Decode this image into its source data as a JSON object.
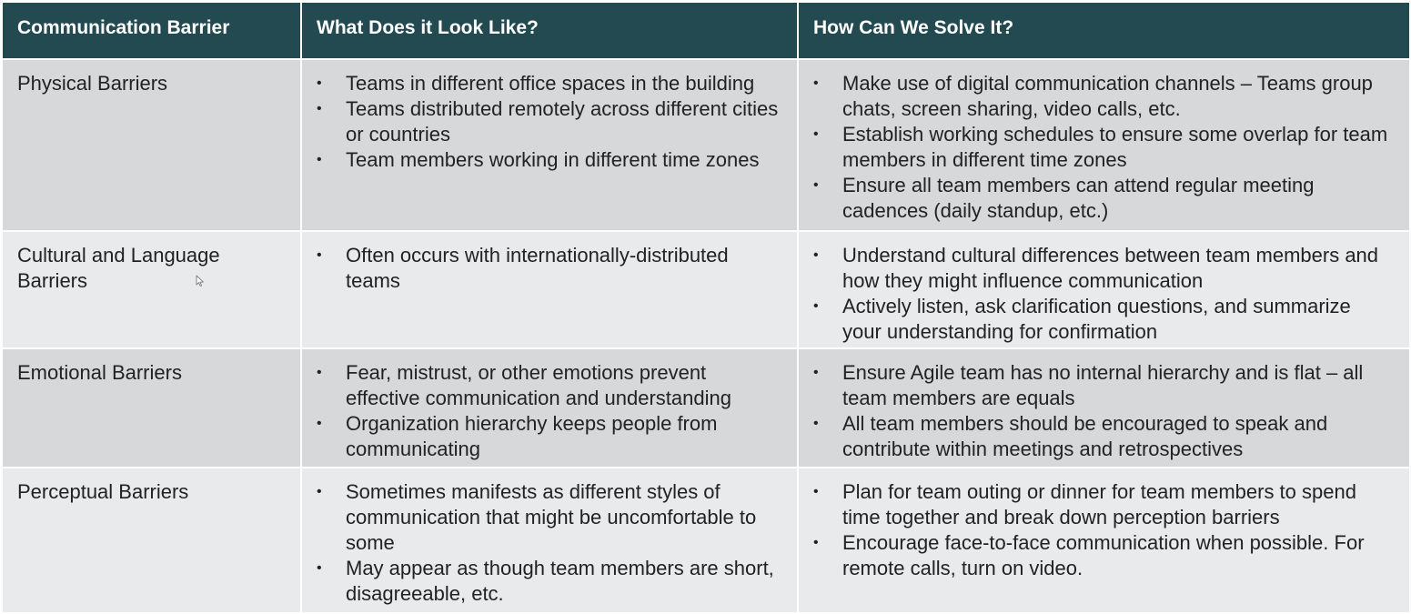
{
  "table": {
    "headers": [
      "Communication Barrier",
      "What Does it Look Like?",
      "How Can We Solve It?"
    ],
    "rows": [
      {
        "barrier": "Physical Barriers",
        "looks_like": [
          "Teams in different office spaces in the building",
          "Teams distributed remotely across different cities or countries",
          "Team members working in different time zones"
        ],
        "solutions": [
          "Make use of digital communication channels – Teams group chats, screen sharing, video calls, etc.",
          "Establish working schedules to ensure some overlap for team members in different time zones",
          "Ensure all team members can attend regular meeting cadences (daily standup, etc.)"
        ]
      },
      {
        "barrier": "Cultural and Language Barriers",
        "looks_like": [
          "Often occurs with internationally-distributed teams"
        ],
        "solutions": [
          "Understand cultural differences between team members and how they might influence communication",
          "Actively listen, ask clarification questions, and summarize your understanding for confirmation"
        ]
      },
      {
        "barrier": "Emotional Barriers",
        "looks_like": [
          "Fear, mistrust, or other emotions prevent effective communication and understanding",
          "Organization hierarchy keeps people from communicating"
        ],
        "solutions": [
          "Ensure Agile team has no internal hierarchy and is flat – all team members are equals",
          "All team members should be encouraged to speak and contribute within meetings and retrospectives"
        ]
      },
      {
        "barrier": "Perceptual Barriers",
        "looks_like": [
          "Sometimes manifests as different styles of communication that might be uncomfortable to some",
          "May appear as though team members are short, disagreeable, etc."
        ],
        "solutions": [
          "Plan for team outing or dinner for team members to spend time together and break down perception barriers",
          "Encourage face-to-face communication when possible. For remote calls, turn on video."
        ]
      }
    ]
  },
  "colors": {
    "header_bg": "#234a51",
    "row_dark": "#d7d8d9",
    "row_light": "#e9eaeb"
  },
  "icons": {
    "cursor": "mouse-pointer-icon"
  }
}
